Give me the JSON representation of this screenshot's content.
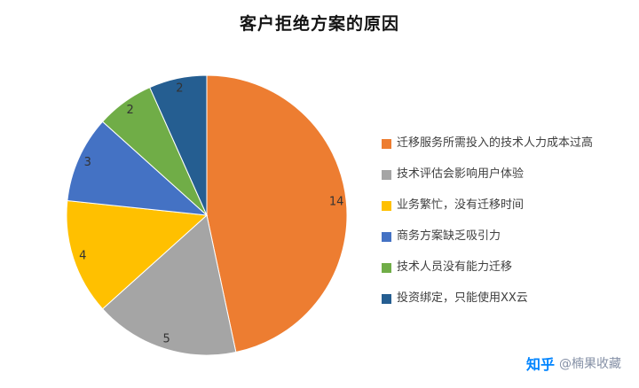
{
  "chart_data": {
    "type": "pie",
    "title": "客户拒绝方案的原因",
    "direction": "clockwise",
    "start_angle_deg": 0,
    "legend_position": "right",
    "data_labels": "value",
    "total": 30,
    "slices": [
      {
        "label": "迁移服务所需投入的技术人力成本过高",
        "value": 14,
        "color": "#ED7D31"
      },
      {
        "label": "技术评估会影响用户体验",
        "value": 5,
        "color": "#A5A5A5"
      },
      {
        "label": "业务繁忙，没有迁移时间",
        "value": 4,
        "color": "#FFC000"
      },
      {
        "label": "商务方案缺乏吸引力",
        "value": 3,
        "color": "#4472C4"
      },
      {
        "label": "技术人员没有能力迁移",
        "value": 2,
        "color": "#70AD47"
      },
      {
        "label": "投资绑定，只能使用XX云",
        "value": 2,
        "color": "#255E91"
      }
    ]
  },
  "watermark": {
    "brand": "知乎",
    "user": "@楠果收藏"
  }
}
